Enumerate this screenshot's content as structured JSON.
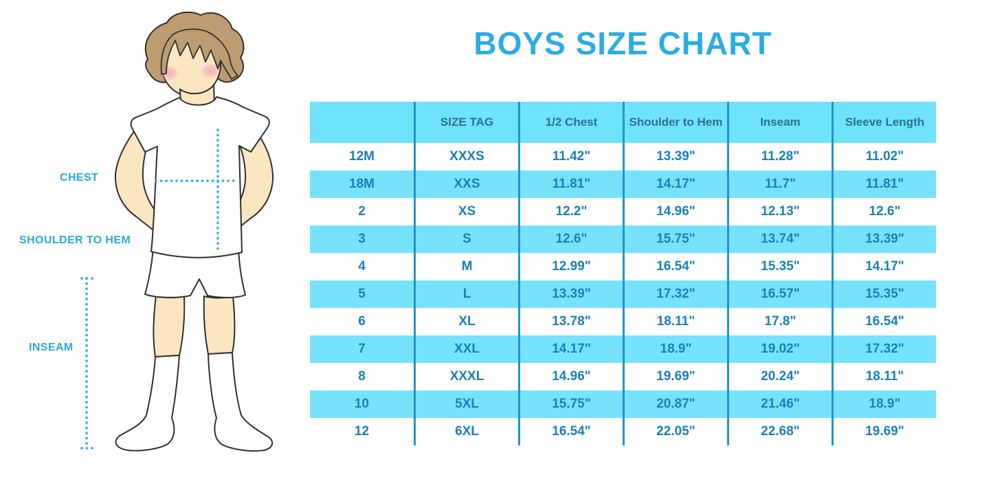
{
  "title": "BOYS SIZE CHART",
  "figure_labels": {
    "chest": "CHEST",
    "shoulder_to_hem": "SHOULDER TO HEM",
    "inseam": "INSEAM"
  },
  "colors": {
    "accent_blue": "#29ABE2",
    "table_header_bg": "#6FE3FB",
    "table_band_bg": "#77E2FC",
    "table_divider": "#2095C6",
    "table_header_text": "#2B7191",
    "table_body_text": "#1980B9",
    "skin": "#FAE6C1",
    "hair": "#BD9C72",
    "blush": "#F2A9BC"
  },
  "chart_data": {
    "type": "table",
    "title": "BOYS SIZE CHART",
    "columns": [
      "",
      "SIZE TAG",
      "1/2 Chest",
      "Shoulder to Hem",
      "Inseam",
      "Sleeve Length"
    ],
    "rows": [
      [
        "12M",
        "XXXS",
        "11.42\"",
        "13.39\"",
        "11.28\"",
        "11.02\""
      ],
      [
        "18M",
        "XXS",
        "11.81\"",
        "14.17\"",
        "11.7\"",
        "11.81\""
      ],
      [
        "2",
        "XS",
        "12.2\"",
        "14.96\"",
        "12.13\"",
        "12.6\""
      ],
      [
        "3",
        "S",
        "12.6\"",
        "15.75\"",
        "13.74\"",
        "13.39\""
      ],
      [
        "4",
        "M",
        "12.99\"",
        "16.54\"",
        "15.35\"",
        "14.17\""
      ],
      [
        "5",
        "L",
        "13.39\"",
        "17.32\"",
        "16.57\"",
        "15.35\""
      ],
      [
        "6",
        "XL",
        "13.78\"",
        "18.11\"",
        "17.8\"",
        "16.54\""
      ],
      [
        "7",
        "XXL",
        "14.17\"",
        "18.9\"",
        "19.02\"",
        "17.32\""
      ],
      [
        "8",
        "XXXL",
        "14.96\"",
        "19.69\"",
        "20.24\"",
        "18.11\""
      ],
      [
        "10",
        "5XL",
        "15.75\"",
        "20.87\"",
        "21.46\"",
        "18.9\""
      ],
      [
        "12",
        "6XL",
        "16.54\"",
        "22.05\"",
        "22.68\"",
        "19.69\""
      ]
    ],
    "banded_row_indices": [
      1,
      3,
      5,
      7,
      9
    ],
    "units": "inches"
  }
}
